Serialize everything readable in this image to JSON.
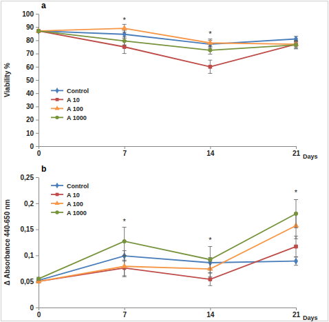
{
  "chart_data": [
    {
      "type": "line",
      "title": "a",
      "x_label": "Days",
      "y_label": "Viability %",
      "x": [
        0,
        7,
        14,
        21
      ],
      "xlim": [
        0,
        21
      ],
      "xticks": [
        0,
        7,
        14,
        21
      ],
      "ylim": [
        0,
        100
      ],
      "yticks": [
        0,
        10,
        20,
        30,
        40,
        50,
        60,
        70,
        80,
        90,
        100
      ],
      "legend": "left",
      "series": [
        {
          "name": "Control",
          "color": "#4a7ebb",
          "marker": "diamond",
          "values": [
            87,
            84.5,
            77,
            81
          ],
          "errors": [
            0,
            3,
            3,
            2
          ]
        },
        {
          "name": "A 10",
          "color": "#be4b48",
          "marker": "square",
          "values": [
            87,
            75,
            60,
            77
          ],
          "errors": [
            0,
            5,
            5,
            3
          ]
        },
        {
          "name": "A 100",
          "color": "#f79646",
          "marker": "triangle",
          "values": [
            87,
            89,
            78,
            77
          ],
          "errors": [
            0,
            3,
            3,
            2
          ]
        },
        {
          "name": "A 1000",
          "color": "#77933c",
          "marker": "circle",
          "values": [
            87,
            79.5,
            72.5,
            76.5
          ],
          "errors": [
            0,
            3,
            3,
            3
          ]
        }
      ],
      "annotations": [
        {
          "text": "*",
          "x": 7,
          "y": 93
        },
        {
          "text": "*",
          "x": 14,
          "y": 83
        }
      ]
    },
    {
      "type": "line",
      "title": "b",
      "x_label": "Days",
      "y_label": "Δ Absorbance 440-650 nm",
      "x": [
        0,
        7,
        14,
        21
      ],
      "xlim": [
        0,
        21
      ],
      "xticks": [
        0,
        7,
        14,
        21
      ],
      "ylim": [
        0,
        0.25
      ],
      "yticks": [
        0,
        {
          "value": 0.05,
          "label": "0,05"
        },
        {
          "value": 0.1,
          "label": "0,1"
        },
        {
          "value": 0.15,
          "label": "0,15"
        },
        {
          "value": 0.2,
          "label": "0,2"
        },
        {
          "value": 0.25,
          "label": "0,25"
        }
      ],
      "legend": "upper left",
      "series": [
        {
          "name": "Control",
          "color": "#4a7ebb",
          "marker": "diamond",
          "values": [
            0.052,
            0.099,
            0.086,
            0.089
          ],
          "errors": [
            0.003,
            0.01,
            0.01,
            0.008
          ]
        },
        {
          "name": "A 10",
          "color": "#be4b48",
          "marker": "square",
          "values": [
            0.05,
            0.076,
            0.054,
            0.117
          ],
          "errors": [
            0.003,
            0.015,
            0.012,
            0.02
          ]
        },
        {
          "name": "A 100",
          "color": "#f79646",
          "marker": "triangle",
          "values": [
            0.05,
            0.079,
            0.074,
            0.157
          ],
          "errors": [
            0.003,
            0.02,
            0.015,
            0.025
          ]
        },
        {
          "name": "A 1000",
          "color": "#77933c",
          "marker": "circle",
          "values": [
            0.055,
            0.127,
            0.092,
            0.18
          ],
          "errors": [
            0.003,
            0.027,
            0.025,
            0.027
          ]
        }
      ],
      "annotations": [
        {
          "text": "*",
          "x": 7,
          "y": 0.16
        },
        {
          "text": "*",
          "x": 14,
          "y": 0.125
        },
        {
          "text": "*",
          "x": 21,
          "y": 0.215
        }
      ]
    }
  ]
}
